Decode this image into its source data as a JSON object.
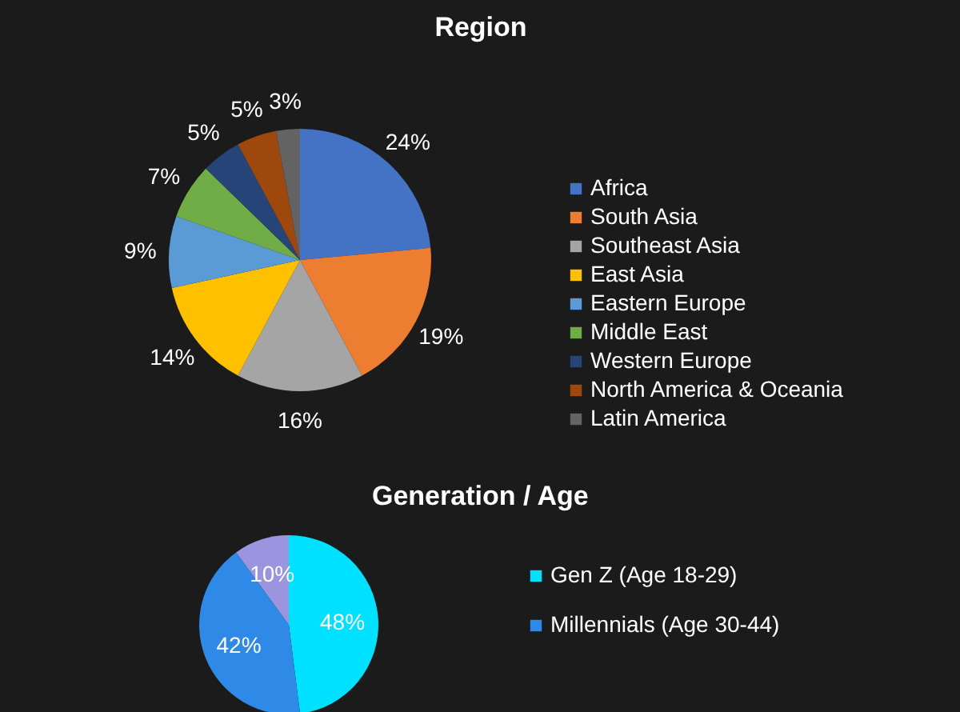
{
  "chart_data": [
    {
      "type": "pie",
      "title": "Region",
      "categories": [
        "Africa",
        "South Asia",
        "Southeast Asia",
        "East Asia",
        "Eastern Europe",
        "Middle East",
        "Western Europe",
        "North America & Oceania",
        "Latin America"
      ],
      "values": [
        24,
        19,
        16,
        14,
        9,
        7,
        5,
        5,
        3
      ],
      "colors": [
        "#4472c4",
        "#ed7d31",
        "#a5a5a5",
        "#ffc000",
        "#5b9bd5",
        "#70ad47",
        "#264478",
        "#9e480e",
        "#636363"
      ],
      "value_labels": [
        "24%",
        "19%",
        "16%",
        "14%",
        "9%",
        "7%",
        "5%",
        "5%",
        "3%"
      ],
      "legend": "right"
    },
    {
      "type": "pie",
      "title": "Generation / Age",
      "categories": [
        "Gen Z (Age 18-29)",
        "Millennials (Age 30-44)",
        null
      ],
      "values": [
        48,
        42,
        10
      ],
      "colors": [
        "#00e0ff",
        "#2e8ae6",
        "#9b95e0"
      ],
      "value_labels": [
        "48%",
        "42%",
        "10%"
      ],
      "legend": "right"
    }
  ]
}
